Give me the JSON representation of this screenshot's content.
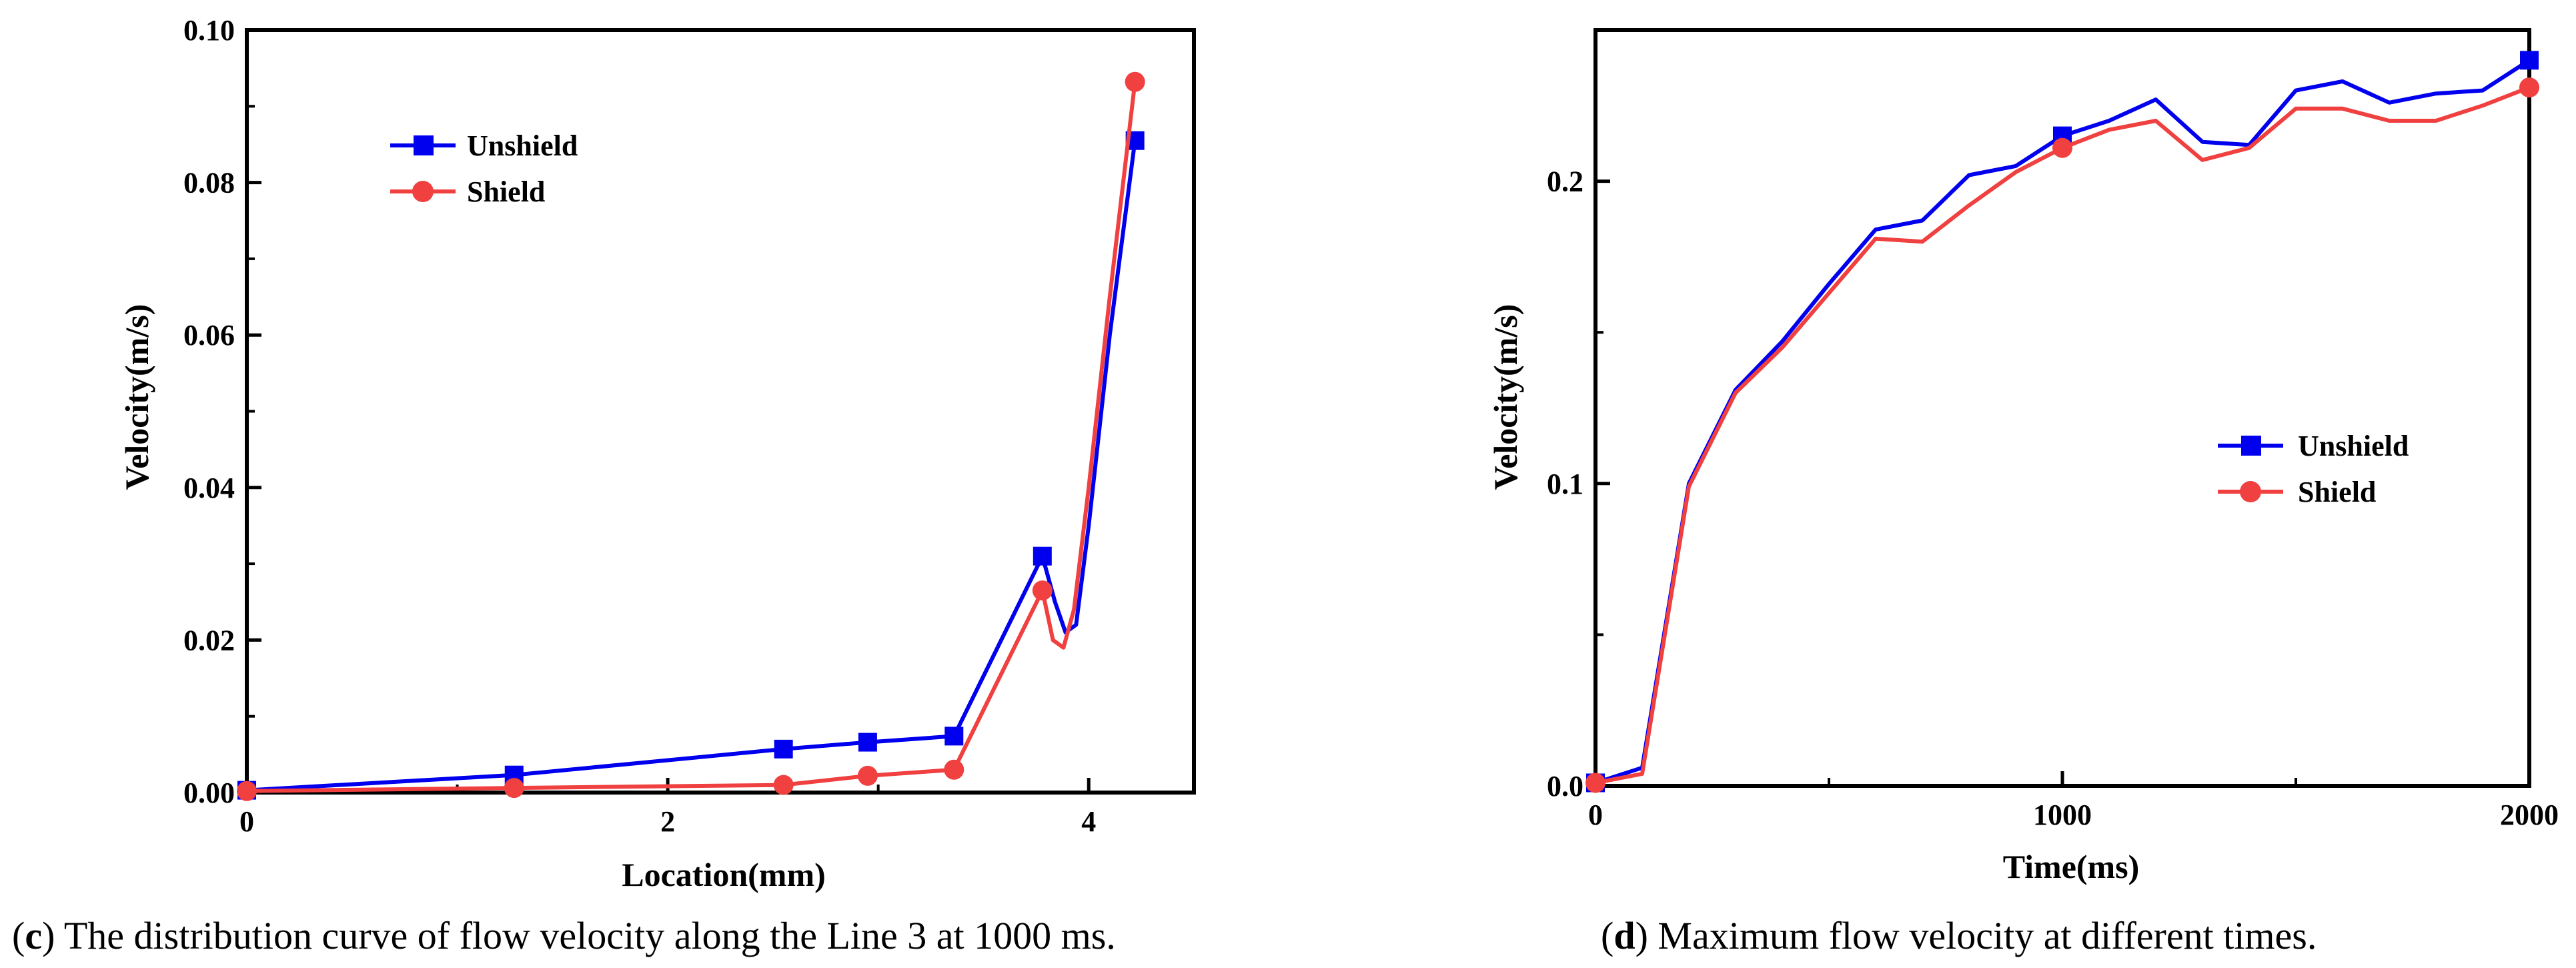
{
  "chart_data": [
    {
      "id": "c",
      "type": "line",
      "xlabel": "Location(mm)",
      "ylabel": "Velocity(m/s)",
      "xlim": [
        0,
        4.5
      ],
      "ylim": [
        0,
        0.1
      ],
      "xticks": [
        0,
        2,
        4
      ],
      "xtick_labels": [
        "0",
        "2",
        "4"
      ],
      "yticks": [
        0,
        0.02,
        0.04,
        0.06,
        0.08,
        0.1
      ],
      "ytick_labels": [
        "0.00",
        "0.02",
        "0.04",
        "0.06",
        "0.08",
        "0.10"
      ],
      "legend": [
        "Unshield",
        "Shield"
      ],
      "legend_position": "upper-left",
      "caption_letter": "c",
      "caption_text": ") The distribution curve of flow velocity along the Line 3 at 1000 ms.",
      "series": [
        {
          "name": "Unshield",
          "color": "#0000ee",
          "marker": "square",
          "x": [
            0,
            1.27,
            2.55,
            2.95,
            3.36,
            3.78,
            3.84,
            3.89,
            3.94,
            4.0,
            4.1,
            4.22
          ],
          "y": [
            0.0003,
            0.0023,
            0.0057,
            0.0066,
            0.0074,
            0.031,
            0.025,
            0.021,
            0.022,
            0.035,
            0.06,
            0.0855
          ],
          "markers_x": [
            0,
            1.27,
            2.55,
            2.95,
            3.36,
            3.78,
            4.22
          ],
          "markers_y": [
            0.0003,
            0.0023,
            0.0057,
            0.0066,
            0.0074,
            0.031,
            0.0855
          ]
        },
        {
          "name": "Shield",
          "color": "#f04040",
          "marker": "circle",
          "x": [
            0,
            1.27,
            2.55,
            2.95,
            3.36,
            3.78,
            3.83,
            3.88,
            3.93,
            4.0,
            4.1,
            4.22
          ],
          "y": [
            0.0002,
            0.0006,
            0.001,
            0.0022,
            0.003,
            0.0265,
            0.02,
            0.019,
            0.024,
            0.04,
            0.065,
            0.0932
          ],
          "markers_x": [
            0,
            1.27,
            2.55,
            2.95,
            3.36,
            3.78,
            4.22
          ],
          "markers_y": [
            0.0002,
            0.0006,
            0.001,
            0.0022,
            0.003,
            0.0265,
            0.0932
          ]
        }
      ]
    },
    {
      "id": "d",
      "type": "line",
      "xlabel": "Time(ms)",
      "ylabel": "Velocity(m/s)",
      "xlim": [
        0,
        2000
      ],
      "ylim": [
        0,
        0.25
      ],
      "xticks": [
        0,
        1000,
        2000
      ],
      "xtick_labels": [
        "0",
        "1000",
        "2000"
      ],
      "yticks": [
        0,
        0.1,
        0.2
      ],
      "ytick_labels": [
        "0.0",
        "0.1",
        "0.2"
      ],
      "legend": [
        "Unshield",
        "Shield"
      ],
      "legend_position": "center-right",
      "caption_letter": "d",
      "caption_text": ") Maximum flow velocity at different times.",
      "series": [
        {
          "name": "Unshield",
          "color": "#0000ee",
          "marker": "square",
          "x": [
            0,
            100,
            200,
            300,
            400,
            500,
            600,
            700,
            800,
            900,
            1000,
            1100,
            1200,
            1300,
            1400,
            1500,
            1600,
            1700,
            1800,
            1900,
            2000
          ],
          "y": [
            0.001,
            0.006,
            0.1,
            0.131,
            0.147,
            0.166,
            0.184,
            0.187,
            0.202,
            0.205,
            0.215,
            0.22,
            0.227,
            0.213,
            0.212,
            0.23,
            0.233,
            0.226,
            0.229,
            0.23,
            0.24
          ],
          "markers_x": [
            0,
            1000,
            2000
          ],
          "markers_y": [
            0.001,
            0.215,
            0.24
          ]
        },
        {
          "name": "Shield",
          "color": "#f04040",
          "marker": "circle",
          "x": [
            0,
            100,
            200,
            300,
            400,
            500,
            600,
            700,
            800,
            900,
            1000,
            1100,
            1200,
            1300,
            1400,
            1500,
            1600,
            1700,
            1800,
            1900,
            2000
          ],
          "y": [
            0.001,
            0.004,
            0.099,
            0.13,
            0.145,
            0.163,
            0.181,
            0.18,
            0.192,
            0.203,
            0.211,
            0.217,
            0.22,
            0.207,
            0.211,
            0.224,
            0.224,
            0.22,
            0.22,
            0.225,
            0.231
          ],
          "markers_x": [
            0,
            1000,
            2000
          ],
          "markers_y": [
            0.001,
            0.211,
            0.231
          ]
        }
      ]
    }
  ]
}
